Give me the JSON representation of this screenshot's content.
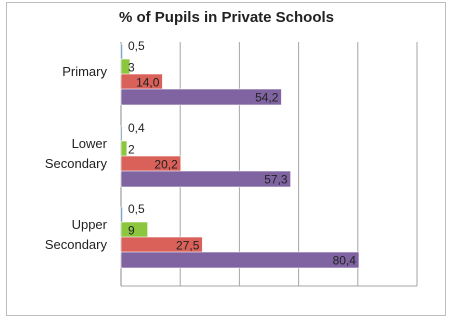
{
  "chart_data": {
    "type": "bar",
    "orientation": "horizontal",
    "title": "% of Pupils in Private Schools",
    "categories": [
      [
        "Primary"
      ],
      [
        "Lower",
        "Secondary"
      ],
      [
        "Upper",
        "Secondary"
      ]
    ],
    "series": [
      {
        "values": [
          "0,5",
          "0,4",
          "0,5"
        ],
        "color": "#4a7ebb"
      },
      {
        "values": [
          "3",
          "2",
          "9"
        ],
        "color": "#8cc63f"
      },
      {
        "values": [
          "14,0",
          "20,2",
          "27,5"
        ],
        "color": "#d9615a"
      },
      {
        "values": [
          "54,2",
          "57,3",
          "80,4"
        ],
        "color": "#8064a2"
      }
    ],
    "xlim": [
      0,
      100
    ],
    "grid": true,
    "legend": false
  }
}
